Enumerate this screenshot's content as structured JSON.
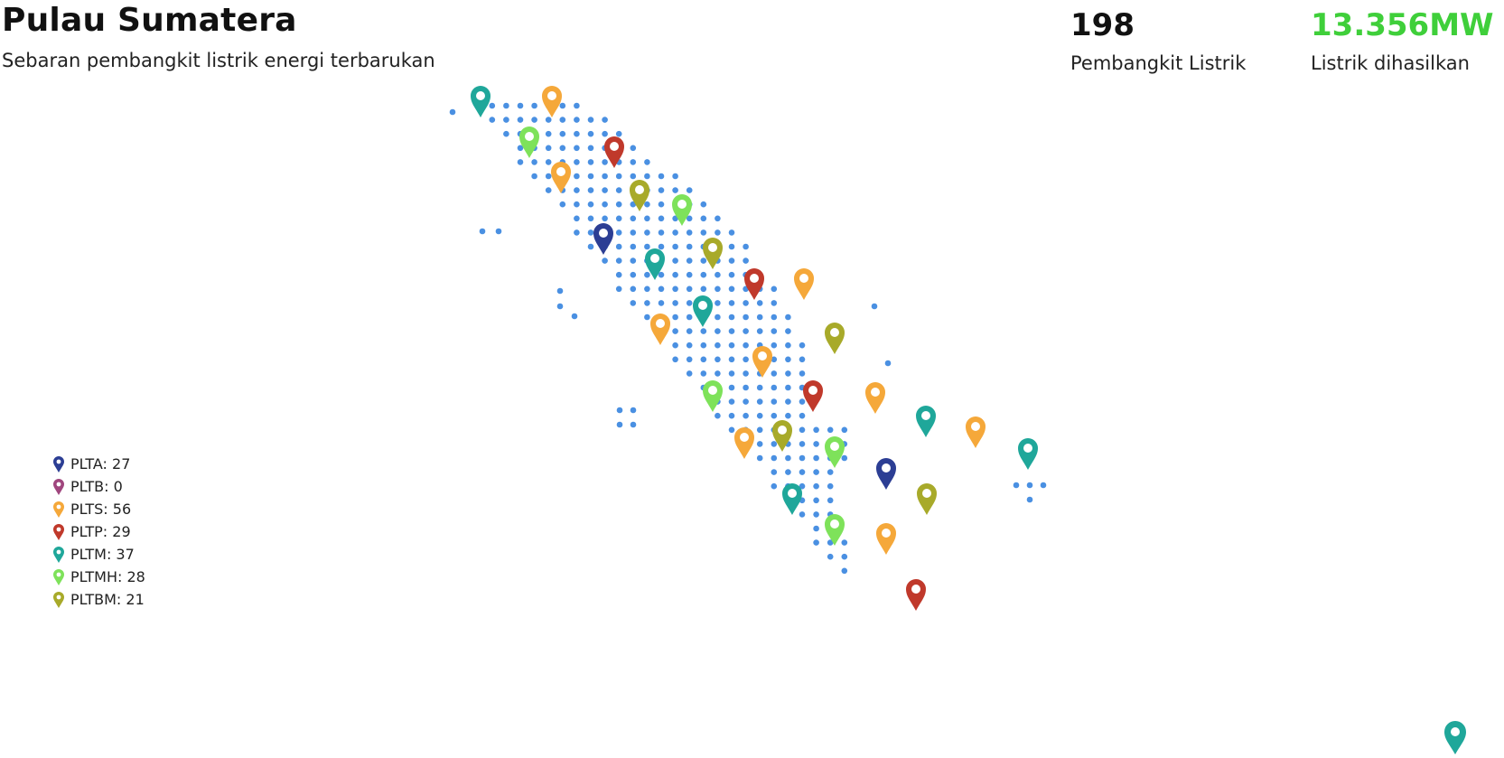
{
  "header": {
    "title": "Pulau Sumatera",
    "subtitle": "Sebaran pembangkit listrik energi terbarukan"
  },
  "stats": [
    {
      "value": "198",
      "label": "Pembangkit Listrik"
    },
    {
      "value": "13.356MW",
      "label": "Listrik dihasilkan"
    }
  ],
  "colors": {
    "dot": "#4a90e2",
    "accent": "#3fcf3a",
    "PLTA": "#2c3e94",
    "PLTB": "#a0467e",
    "PLTS": "#f5a83a",
    "PLTP": "#c0392b",
    "PLTM": "#1fa79a",
    "PLTMH": "#7ee25a",
    "PLTBM": "#a8aa2a"
  },
  "legend": [
    {
      "type": "PLTA",
      "label": "PLTA: 27",
      "icon": "map-pin-icon"
    },
    {
      "type": "PLTB",
      "label": "PLTB: 0",
      "icon": "map-pin-icon"
    },
    {
      "type": "PLTS",
      "label": "PLTS: 56",
      "icon": "map-pin-icon"
    },
    {
      "type": "PLTP",
      "label": "PLTP: 29",
      "icon": "map-pin-icon"
    },
    {
      "type": "PLTM",
      "label": "PLTM: 37",
      "icon": "map-pin-icon"
    },
    {
      "type": "PLTMH",
      "label": "PLTMH: 28",
      "icon": "map-pin-icon"
    },
    {
      "type": "PLTBM",
      "label": "PLTBM: 21",
      "icon": "map-pin-icon"
    }
  ],
  "map_markers": [
    {
      "type": "PLTM"
    },
    {
      "type": "PLTS"
    },
    {
      "type": "PLTMH"
    },
    {
      "type": "PLTP"
    },
    {
      "type": "PLTS"
    },
    {
      "type": "PLTBM"
    },
    {
      "type": "PLTMH"
    },
    {
      "type": "PLTA"
    },
    {
      "type": "PLTBM"
    },
    {
      "type": "PLTM"
    },
    {
      "type": "PLTP"
    },
    {
      "type": "PLTS"
    },
    {
      "type": "PLTM"
    },
    {
      "type": "PLTS"
    },
    {
      "type": "PLTBM"
    },
    {
      "type": "PLTS"
    },
    {
      "type": "PLTP"
    },
    {
      "type": "PLTS"
    },
    {
      "type": "PLTMH"
    },
    {
      "type": "PLTM"
    },
    {
      "type": "PLTS"
    },
    {
      "type": "PLTBM"
    },
    {
      "type": "PLTS"
    },
    {
      "type": "PLTMH"
    },
    {
      "type": "PLTM"
    },
    {
      "type": "PLTA"
    },
    {
      "type": "PLTM"
    },
    {
      "type": "PLTBM"
    },
    {
      "type": "PLTMH"
    },
    {
      "type": "PLTS"
    },
    {
      "type": "PLTP"
    }
  ]
}
